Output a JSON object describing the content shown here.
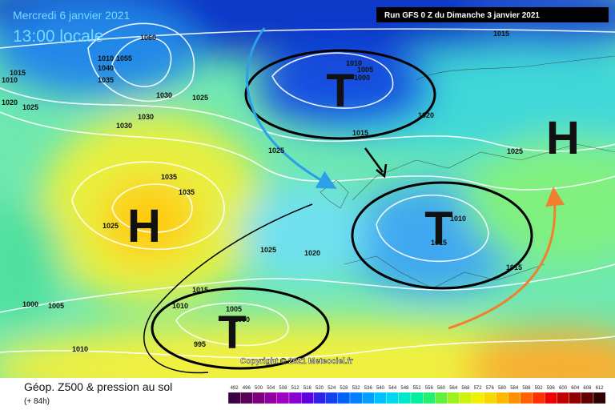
{
  "header": {
    "date": "Mercredi 6 janvier 2021",
    "time": "13:00 locale",
    "run": "Run GFS 0 Z du Dimanche 3 janvier 2021"
  },
  "footer": {
    "title": "Géop. Z500 & pression au sol",
    "forecast": "(+ 84h)",
    "copyright": "Copyright © 2021 Meteociel.fr"
  },
  "systems": [
    "T",
    "H",
    "T",
    "T",
    "H"
  ],
  "isobar_labels": [
    1060,
    1010,
    1055,
    1040,
    1035,
    1015,
    1010,
    1020,
    1025,
    1030,
    1030,
    1030,
    1025,
    1015,
    1010,
    1005,
    1000,
    1015,
    1020,
    1025,
    1025,
    1035,
    1035,
    1025,
    1010,
    1015,
    1015,
    1025,
    1020,
    1015,
    1010,
    1005,
    1000,
    995,
    1000,
    1005,
    1010
  ],
  "scale": {
    "values": [
      492,
      496,
      500,
      504,
      508,
      512,
      516,
      520,
      524,
      528,
      532,
      536,
      540,
      544,
      548,
      552,
      556,
      560,
      564,
      568,
      572,
      576,
      580,
      584,
      588,
      592,
      596,
      600,
      604,
      608,
      612
    ],
    "colors": [
      "#3a0040",
      "#5a005a",
      "#7a0080",
      "#9000a0",
      "#a000c0",
      "#8a00d0",
      "#6000e0",
      "#3020e8",
      "#1040f0",
      "#0060f8",
      "#0080ff",
      "#00a0ff",
      "#00c0ff",
      "#00d8f0",
      "#00e8c8",
      "#00f0a0",
      "#20f070",
      "#60f040",
      "#a0f020",
      "#d0f010",
      "#f0f000",
      "#f8d800",
      "#ffb800",
      "#ff9000",
      "#ff6000",
      "#ff3000",
      "#f00000",
      "#c00000",
      "#900000",
      "#600000",
      "#300000"
    ]
  }
}
